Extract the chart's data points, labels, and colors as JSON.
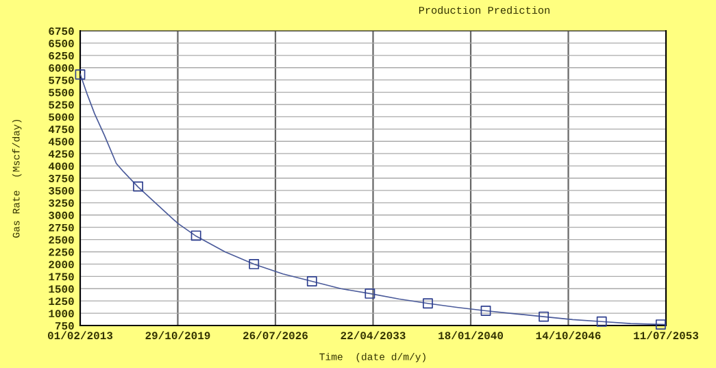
{
  "chart_data": {
    "type": "line",
    "title": "Production Prediction",
    "xlabel": "Time  (date d/m/y)",
    "ylabel": "Gas Rate  (Mscf/day)",
    "xlim": [
      "2013-02-01",
      "2053-07-11"
    ],
    "xticks": [
      {
        "value": "2013-02-01",
        "label": "01/02/2013"
      },
      {
        "value": "2019-10-29",
        "label": "29/10/2019"
      },
      {
        "value": "2026-07-26",
        "label": "26/07/2026"
      },
      {
        "value": "2033-04-22",
        "label": "22/04/2033"
      },
      {
        "value": "2040-01-18",
        "label": "18/01/2040"
      },
      {
        "value": "2046-10-14",
        "label": "14/10/2046"
      },
      {
        "value": "2053-07-11",
        "label": "11/07/2053"
      }
    ],
    "ylim": [
      750,
      6750
    ],
    "yticks": [
      750,
      1000,
      1250,
      1500,
      1750,
      2000,
      2250,
      2500,
      2750,
      3000,
      3250,
      3500,
      3750,
      4000,
      4250,
      4500,
      4750,
      5000,
      5250,
      5500,
      5750,
      6000,
      6250,
      6500,
      6750
    ],
    "grid": true,
    "legend": false,
    "series": [
      {
        "color": "#4a5a9a",
        "marker": "none",
        "line_style": "solid",
        "x": [
          "2013-02-01",
          "2013-08-01",
          "2014-02-01",
          "2014-10-01",
          "2015-08-01",
          "2016-02-01",
          "2017-02-01",
          "2019-10-29",
          "2021-02-01",
          "2023-02-01",
          "2025-02-01",
          "2027-02-01",
          "2029-02-01",
          "2031-02-01",
          "2033-02-01",
          "2035-02-01",
          "2037-02-01",
          "2039-02-01",
          "2041-02-01",
          "2043-02-01",
          "2045-02-01",
          "2047-02-01",
          "2049-02-01",
          "2051-02-01",
          "2053-07-11"
        ],
        "values": [
          5870,
          5450,
          5060,
          4630,
          4050,
          3880,
          3570,
          2830,
          2570,
          2250,
          2000,
          1800,
          1650,
          1500,
          1400,
          1290,
          1200,
          1120,
          1050,
          990,
          930,
          870,
          830,
          790,
          770
        ]
      },
      {
        "type": "scatter",
        "color": "#2e3f8f",
        "marker": "square",
        "x": [
          "2013-02-01",
          "2017-02-01",
          "2021-02-01",
          "2025-02-01",
          "2029-02-01",
          "2033-02-01",
          "2037-02-01",
          "2041-02-01",
          "2045-02-01",
          "2049-02-01",
          "2053-03-01"
        ],
        "values": [
          5860,
          3580,
          2580,
          2000,
          1650,
          1400,
          1200,
          1050,
          930,
          830,
          770
        ]
      }
    ]
  }
}
